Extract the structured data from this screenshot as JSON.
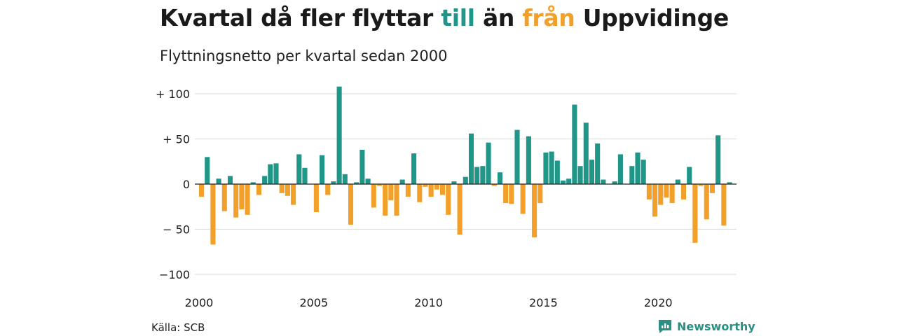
{
  "title": {
    "part1": "Kvartal då fler flyttar ",
    "in_word": "till",
    "part2": " än ",
    "out_word": "från",
    "part3": " Uppvidinge"
  },
  "subtitle": "Flyttningsnetto per kvartal sedan 2000",
  "source": "Källa: SCB",
  "brand": {
    "name": "Newsworthy",
    "icon": "newsworthy-logo-icon"
  },
  "colors": {
    "positive": "#1f9688",
    "negative": "#f2a02a",
    "grid": "#d9d9d9",
    "zero": "#222222"
  },
  "chart_data": {
    "type": "bar",
    "title": "Kvartal då fler flyttar till än från Uppvidinge",
    "subtitle": "Flyttningsnetto per kvartal sedan 2000",
    "x_start_year": 2000,
    "quarters_per_year": 4,
    "ylim": [
      -110,
      110
    ],
    "yticks": [
      100,
      50,
      0,
      -50,
      -100
    ],
    "ytick_labels": [
      "+ 100",
      "+  50",
      "0",
      "− 50",
      "−100"
    ],
    "xticks": [
      2000,
      2005,
      2010,
      2015,
      2020
    ],
    "grid": true,
    "values": [
      -14,
      30,
      -67,
      6,
      -30,
      9,
      -37,
      -28,
      -34,
      2,
      -12,
      9,
      22,
      23,
      -10,
      -13,
      -23,
      33,
      18,
      0,
      -31,
      32,
      -12,
      3,
      108,
      11,
      -45,
      2,
      38,
      6,
      -26,
      -2,
      -35,
      -18,
      -35,
      5,
      -14,
      34,
      -20,
      -3,
      -14,
      -6,
      -12,
      -34,
      3,
      -56,
      8,
      56,
      19,
      20,
      46,
      -2,
      13,
      -21,
      -22,
      60,
      -33,
      53,
      -59,
      -21,
      35,
      36,
      26,
      4,
      6,
      88,
      20,
      68,
      27,
      45,
      5,
      0,
      3,
      33,
      0,
      20,
      35,
      27,
      -17,
      -36,
      -23,
      -15,
      -21,
      5,
      -17,
      19,
      -65,
      -2,
      -39,
      -10,
      54,
      -46,
      2
    ]
  }
}
